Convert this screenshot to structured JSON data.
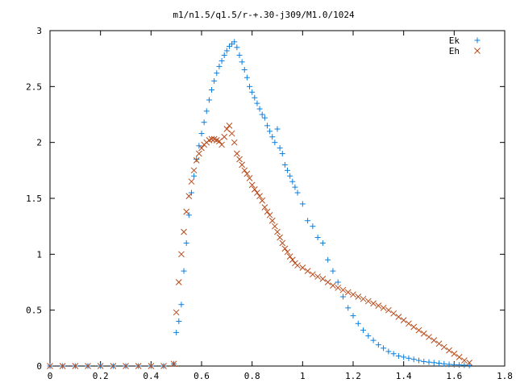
{
  "chart_data": {
    "type": "scatter",
    "title": "m1/n1.5/q1.5/r-+.30-j309/M1.0/1024",
    "xlabel": "",
    "ylabel": "",
    "xlim": [
      0,
      1.8
    ],
    "ylim": [
      0,
      3
    ],
    "x_ticks": [
      "0",
      "0.2",
      "0.4",
      "0.6",
      "0.8",
      "1",
      "1.2",
      "1.4",
      "1.6",
      "1.8"
    ],
    "y_ticks": [
      "0",
      "0.5",
      "1",
      "1.5",
      "2",
      "2.5",
      "3"
    ],
    "grid": false,
    "legend_position": "top-right",
    "series": [
      {
        "name": "Ek",
        "marker": "plus",
        "color": "#0a7fe0",
        "points": [
          [
            0.0,
            0
          ],
          [
            0.05,
            0
          ],
          [
            0.1,
            0
          ],
          [
            0.15,
            0
          ],
          [
            0.2,
            0
          ],
          [
            0.25,
            0
          ],
          [
            0.3,
            0
          ],
          [
            0.35,
            0
          ],
          [
            0.4,
            0
          ],
          [
            0.45,
            0
          ],
          [
            0.49,
            0.02
          ],
          [
            0.5,
            0.3
          ],
          [
            0.51,
            0.4
          ],
          [
            0.52,
            0.55
          ],
          [
            0.53,
            0.85
          ],
          [
            0.54,
            1.1
          ],
          [
            0.55,
            1.35
          ],
          [
            0.56,
            1.55
          ],
          [
            0.57,
            1.7
          ],
          [
            0.58,
            1.85
          ],
          [
            0.59,
            1.97
          ],
          [
            0.6,
            2.08
          ],
          [
            0.61,
            2.18
          ],
          [
            0.62,
            2.28
          ],
          [
            0.63,
            2.38
          ],
          [
            0.64,
            2.47
          ],
          [
            0.65,
            2.55
          ],
          [
            0.66,
            2.62
          ],
          [
            0.67,
            2.68
          ],
          [
            0.68,
            2.73
          ],
          [
            0.69,
            2.78
          ],
          [
            0.7,
            2.82
          ],
          [
            0.71,
            2.86
          ],
          [
            0.72,
            2.88
          ],
          [
            0.73,
            2.9
          ],
          [
            0.74,
            2.85
          ],
          [
            0.75,
            2.78
          ],
          [
            0.76,
            2.72
          ],
          [
            0.77,
            2.65
          ],
          [
            0.78,
            2.58
          ],
          [
            0.79,
            2.5
          ],
          [
            0.8,
            2.45
          ],
          [
            0.81,
            2.4
          ],
          [
            0.82,
            2.35
          ],
          [
            0.83,
            2.3
          ],
          [
            0.84,
            2.25
          ],
          [
            0.85,
            2.22
          ],
          [
            0.86,
            2.15
          ],
          [
            0.87,
            2.1
          ],
          [
            0.88,
            2.05
          ],
          [
            0.89,
            2.0
          ],
          [
            0.9,
            2.12
          ],
          [
            0.91,
            1.95
          ],
          [
            0.92,
            1.9
          ],
          [
            0.93,
            1.8
          ],
          [
            0.94,
            1.75
          ],
          [
            0.95,
            1.7
          ],
          [
            0.96,
            1.65
          ],
          [
            0.97,
            1.6
          ],
          [
            0.98,
            1.55
          ],
          [
            1.0,
            1.45
          ],
          [
            1.02,
            1.3
          ],
          [
            1.04,
            1.25
          ],
          [
            1.06,
            1.15
          ],
          [
            1.08,
            1.1
          ],
          [
            1.1,
            0.95
          ],
          [
            1.12,
            0.85
          ],
          [
            1.14,
            0.75
          ],
          [
            1.16,
            0.62
          ],
          [
            1.18,
            0.52
          ],
          [
            1.2,
            0.45
          ],
          [
            1.22,
            0.38
          ],
          [
            1.24,
            0.32
          ],
          [
            1.26,
            0.27
          ],
          [
            1.28,
            0.23
          ],
          [
            1.3,
            0.19
          ],
          [
            1.32,
            0.16
          ],
          [
            1.34,
            0.13
          ],
          [
            1.36,
            0.11
          ],
          [
            1.38,
            0.09
          ],
          [
            1.4,
            0.08
          ],
          [
            1.42,
            0.07
          ],
          [
            1.44,
            0.06
          ],
          [
            1.46,
            0.05
          ],
          [
            1.48,
            0.04
          ],
          [
            1.5,
            0.035
          ],
          [
            1.52,
            0.03
          ],
          [
            1.54,
            0.025
          ],
          [
            1.56,
            0.02
          ],
          [
            1.58,
            0.015
          ],
          [
            1.6,
            0.012
          ],
          [
            1.62,
            0.01
          ],
          [
            1.64,
            0.008
          ],
          [
            1.66,
            0.005
          ]
        ]
      },
      {
        "name": "Eh",
        "marker": "cross",
        "color": "#b84a1a",
        "points": [
          [
            0.0,
            0
          ],
          [
            0.05,
            0
          ],
          [
            0.1,
            0
          ],
          [
            0.15,
            0
          ],
          [
            0.2,
            0
          ],
          [
            0.25,
            0
          ],
          [
            0.3,
            0
          ],
          [
            0.35,
            0
          ],
          [
            0.4,
            0
          ],
          [
            0.45,
            0
          ],
          [
            0.49,
            0.02
          ],
          [
            0.5,
            0.48
          ],
          [
            0.51,
            0.75
          ],
          [
            0.52,
            1.0
          ],
          [
            0.53,
            1.2
          ],
          [
            0.54,
            1.38
          ],
          [
            0.55,
            1.52
          ],
          [
            0.56,
            1.65
          ],
          [
            0.57,
            1.75
          ],
          [
            0.58,
            1.84
          ],
          [
            0.59,
            1.9
          ],
          [
            0.6,
            1.95
          ],
          [
            0.61,
            1.98
          ],
          [
            0.62,
            2.0
          ],
          [
            0.63,
            2.02
          ],
          [
            0.64,
            2.03
          ],
          [
            0.65,
            2.03
          ],
          [
            0.66,
            2.02
          ],
          [
            0.67,
            2.01
          ],
          [
            0.68,
            1.98
          ],
          [
            0.69,
            2.05
          ],
          [
            0.7,
            2.12
          ],
          [
            0.71,
            2.15
          ],
          [
            0.72,
            2.08
          ],
          [
            0.73,
            2.0
          ],
          [
            0.74,
            1.9
          ],
          [
            0.75,
            1.85
          ],
          [
            0.76,
            1.8
          ],
          [
            0.77,
            1.75
          ],
          [
            0.78,
            1.72
          ],
          [
            0.79,
            1.68
          ],
          [
            0.8,
            1.62
          ],
          [
            0.81,
            1.58
          ],
          [
            0.82,
            1.55
          ],
          [
            0.83,
            1.52
          ],
          [
            0.84,
            1.48
          ],
          [
            0.85,
            1.42
          ],
          [
            0.86,
            1.38
          ],
          [
            0.87,
            1.35
          ],
          [
            0.88,
            1.3
          ],
          [
            0.89,
            1.25
          ],
          [
            0.9,
            1.2
          ],
          [
            0.91,
            1.15
          ],
          [
            0.92,
            1.1
          ],
          [
            0.93,
            1.05
          ],
          [
            0.94,
            1.02
          ],
          [
            0.95,
            0.98
          ],
          [
            0.96,
            0.95
          ],
          [
            0.97,
            0.92
          ],
          [
            0.98,
            0.9
          ],
          [
            1.0,
            0.88
          ],
          [
            1.02,
            0.85
          ],
          [
            1.04,
            0.82
          ],
          [
            1.06,
            0.8
          ],
          [
            1.08,
            0.78
          ],
          [
            1.1,
            0.75
          ],
          [
            1.12,
            0.72
          ],
          [
            1.14,
            0.7
          ],
          [
            1.16,
            0.68
          ],
          [
            1.18,
            0.66
          ],
          [
            1.2,
            0.64
          ],
          [
            1.22,
            0.62
          ],
          [
            1.24,
            0.6
          ],
          [
            1.26,
            0.58
          ],
          [
            1.28,
            0.56
          ],
          [
            1.3,
            0.54
          ],
          [
            1.32,
            0.52
          ],
          [
            1.34,
            0.5
          ],
          [
            1.36,
            0.47
          ],
          [
            1.38,
            0.44
          ],
          [
            1.4,
            0.41
          ],
          [
            1.42,
            0.38
          ],
          [
            1.44,
            0.35
          ],
          [
            1.46,
            0.32
          ],
          [
            1.48,
            0.29
          ],
          [
            1.5,
            0.26
          ],
          [
            1.52,
            0.23
          ],
          [
            1.54,
            0.2
          ],
          [
            1.56,
            0.17
          ],
          [
            1.58,
            0.14
          ],
          [
            1.6,
            0.11
          ],
          [
            1.62,
            0.08
          ],
          [
            1.64,
            0.05
          ],
          [
            1.66,
            0.03
          ]
        ]
      }
    ]
  }
}
